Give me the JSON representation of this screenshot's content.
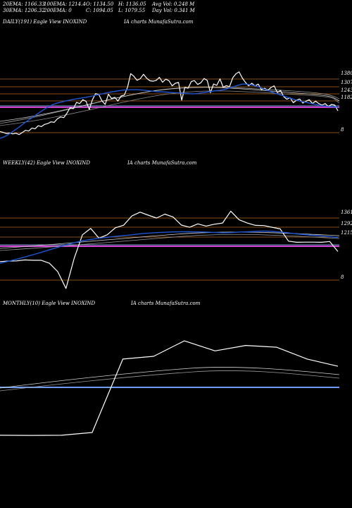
{
  "header": {
    "ema20": "20EMA: 1166.33",
    "ema100": "100EMA: 1214.4",
    "open": "O: 1134.50",
    "high": "H: 1136.05",
    "avg_vol": "Avg Vol: 0.248  M",
    "ema30": "30EMA: 1206.32",
    "ema200": "200EMA: 0",
    "close": "C: 1094.05",
    "low": "L: 1079.55",
    "day_vol": "Day Vol: 0.341  M"
  },
  "colors": {
    "background": "#000000",
    "price": "#ffffff",
    "ema_blue": "#1e56d6",
    "level_line": "#b5651d",
    "magenta_line": "#d33fd3",
    "slate_line": "#6b7fb0",
    "ema_gray": "#9a9a9a"
  },
  "chart_data": [
    {
      "type": "line",
      "title_left": "DAILY(191) Eagle   View  INOXIND",
      "title_right": "IA charts MunafaSutra.com",
      "y_ticks": [
        "1380",
        "1307",
        "1243",
        "1182",
        "8"
      ],
      "series": [
        {
          "values": [
            1040,
            1035,
            1028,
            1031,
            1026,
            1030,
            1022,
            1034,
            1047,
            1043,
            1060,
            1056,
            1074,
            1069,
            1082,
            1087,
            1097,
            1094,
            1115,
            1126,
            1122,
            1148,
            1181,
            1175,
            1212,
            1205,
            1228,
            1218,
            1170,
            1228,
            1264,
            1258,
            1221,
            1200,
            1260,
            1235,
            1242,
            1220,
            1250,
            1255,
            1301,
            1382,
            1366,
            1342,
            1352,
            1378,
            1355,
            1340,
            1337,
            1342,
            1360,
            1331,
            1349,
            1340,
            1310,
            1325,
            1330,
            1225,
            1301,
            1296,
            1335,
            1341,
            1318,
            1328,
            1353,
            1342,
            1269,
            1321,
            1313,
            1351,
            1302,
            1311,
            1305,
            1357,
            1381,
            1392,
            1356,
            1330,
            1310,
            1325,
            1309,
            1320,
            1288,
            1296,
            1283,
            1300,
            1310,
            1270,
            1283,
            1246,
            1231,
            1239,
            1210,
            1225,
            1232,
            1208,
            1219,
            1228,
            1206,
            1219,
            1205,
            1196,
            1205,
            1188,
            1200,
            1196,
            1162
          ]
        },
        {
          "values": [
            1000,
            1006,
            1015,
            1027,
            1040,
            1053,
            1066,
            1081,
            1095,
            1108,
            1121,
            1134,
            1147,
            1160,
            1172,
            1184,
            1194,
            1202,
            1208,
            1213,
            1218,
            1222,
            1226,
            1230,
            1233,
            1236,
            1239,
            1242,
            1246,
            1250,
            1254,
            1258,
            1262,
            1267,
            1270,
            1274,
            1277,
            1280,
            1283,
            1285,
            1286,
            1287,
            1287,
            1287,
            1286,
            1284,
            1282,
            1280,
            1278,
            1276,
            1275,
            1274,
            1273,
            1271,
            1270,
            1269,
            1268,
            1266,
            1265,
            1264,
            1263,
            1263,
            1265,
            1268,
            1270,
            1273,
            1276,
            1279,
            1282,
            1283,
            1287,
            1291,
            1297,
            1303,
            1309,
            1315,
            1320,
            1320,
            1318,
            1314,
            1310,
            1305,
            1298,
            1290,
            1282,
            1275,
            1268,
            1262,
            1256,
            1250,
            1243,
            1237,
            1231,
            1225,
            1220,
            1216,
            1212,
            1208,
            1204,
            1200,
            1196,
            1192,
            1190,
            1188,
            1186,
            1185,
            1184
          ]
        }
      ]
    },
    {
      "type": "line",
      "title_left": "WEEKLY(42) Eagle   View  INOXIND",
      "title_right": "IA charts MunafaSutra.com",
      "y_ticks": [
        "1361",
        "1292",
        "1215",
        "8"
      ],
      "series": [
        {
          "values": [
            1060,
            1063,
            1064,
            1070,
            1068,
            1068,
            1050,
            1000,
            900,
            1080,
            1220,
            1258,
            1200,
            1220,
            1262,
            1277,
            1332,
            1355,
            1337,
            1320,
            1343,
            1326,
            1278,
            1265,
            1285,
            1272,
            1283,
            1290,
            1361,
            1310,
            1290,
            1276,
            1275,
            1265,
            1255,
            1182,
            1175,
            1176,
            1176,
            1175,
            1180,
            1120
          ]
        },
        {
          "values": [
            1050,
            1062,
            1074,
            1087,
            1101,
            1115,
            1130,
            1145,
            1160,
            1172,
            1184,
            1192,
            1199,
            1205,
            1211,
            1215,
            1220,
            1226,
            1230,
            1233,
            1235,
            1237,
            1238,
            1238,
            1237,
            1236,
            1234,
            1232,
            1233,
            1236,
            1238,
            1240,
            1242,
            1240,
            1236,
            1231,
            1225,
            1221,
            1216,
            1212,
            1208,
            1204
          ]
        }
      ]
    },
    {
      "type": "line",
      "title_left": "MONTHLY(10) Eagle   View  INOXIND",
      "title_right": "IA charts MunafaSutra.com",
      "series": [
        {
          "values": [
            180,
            178,
            180,
            210,
            1020,
            1050,
            1220,
            1110,
            1170,
            1150,
            1020,
            940
          ]
        }
      ]
    }
  ]
}
